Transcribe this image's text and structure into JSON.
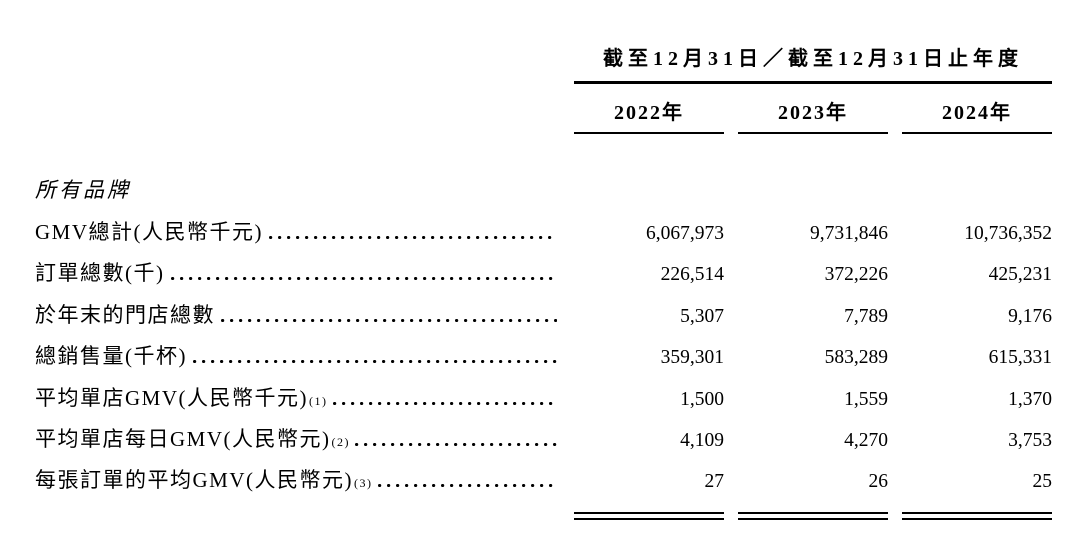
{
  "table": {
    "header_title": "截至12月31日／截至12月31日止年度",
    "columns": [
      "2022年",
      "2023年",
      "2024年"
    ],
    "section_header": "所有品牌",
    "rows": [
      {
        "label": "GMV總計(人民幣千元)",
        "note": "",
        "values": [
          "6,067,973",
          "9,731,846",
          "10,736,352"
        ]
      },
      {
        "label": "訂單總數(千)",
        "note": "",
        "values": [
          "226,514",
          "372,226",
          "425,231"
        ]
      },
      {
        "label": "於年末的門店總數",
        "note": "",
        "values": [
          "5,307",
          "7,789",
          "9,176"
        ]
      },
      {
        "label": "總銷售量(千杯)",
        "note": "",
        "values": [
          "359,301",
          "583,289",
          "615,331"
        ]
      },
      {
        "label": "平均單店GMV(人民幣千元)",
        "note": "(1)",
        "values": [
          "1,500",
          "1,559",
          "1,370"
        ]
      },
      {
        "label": "平均單店每日GMV(人民幣元)",
        "note": "(2)",
        "values": [
          "4,109",
          "4,270",
          "3,753"
        ]
      },
      {
        "label": "每張訂單的平均GMV(人民幣元)",
        "note": "(3)",
        "values": [
          "27",
          "26",
          "25"
        ]
      }
    ],
    "text_color": "#000000",
    "background_color": "#ffffff"
  }
}
